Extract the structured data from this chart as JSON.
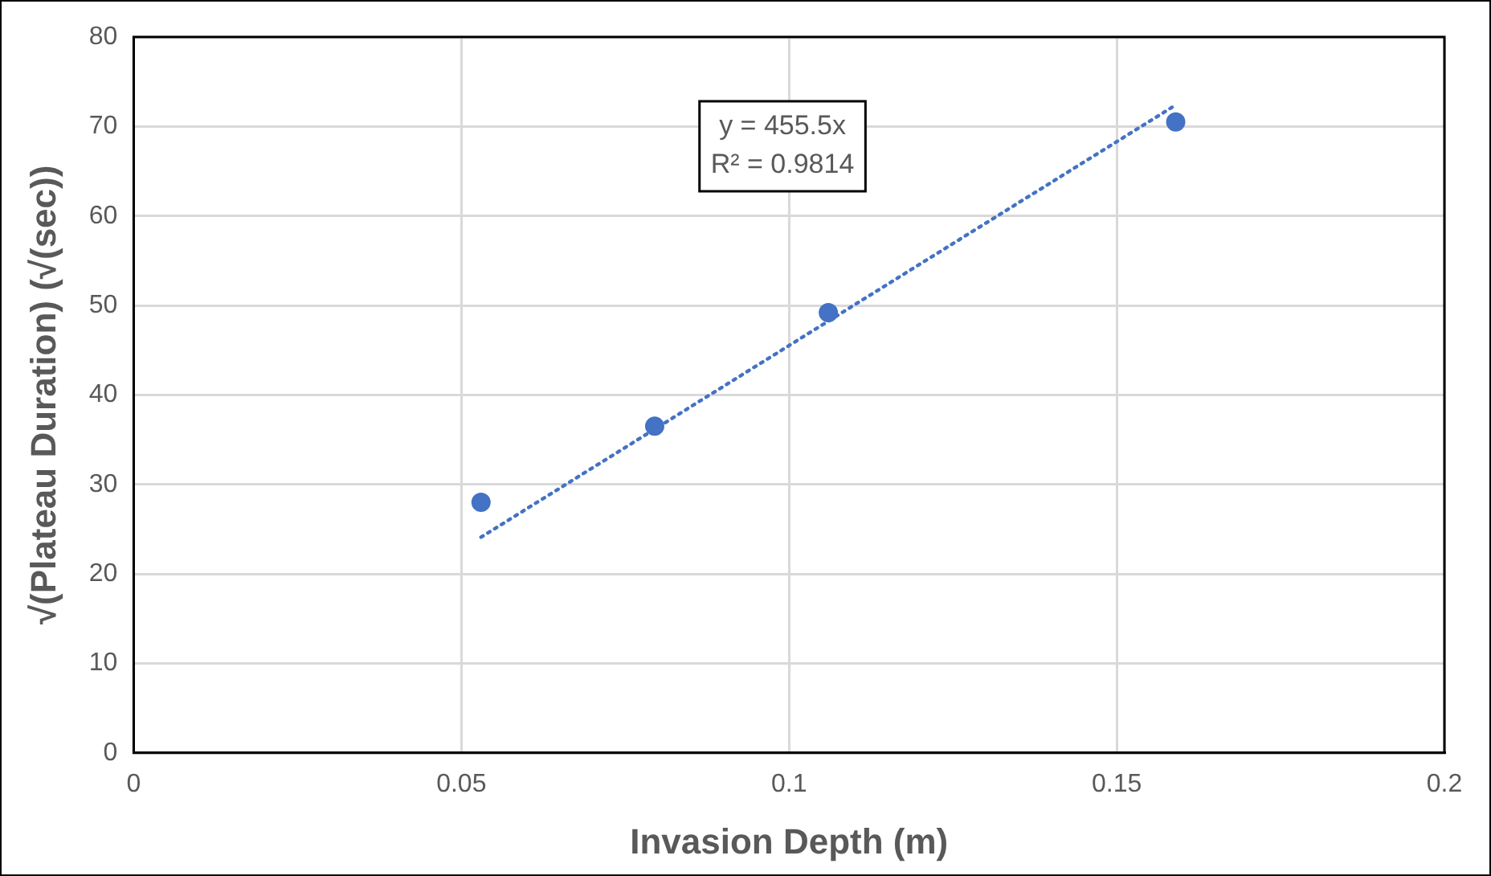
{
  "chart_data": {
    "type": "scatter",
    "xlabel": "Invasion Depth (m)",
    "ylabel": "√(Plateau Duration) (√(sec))",
    "xlim": [
      0,
      0.2
    ],
    "xticks": [
      0,
      0.05,
      0.1,
      0.15,
      0.2
    ],
    "ylim": [
      0,
      80
    ],
    "yticks": [
      0,
      10,
      20,
      30,
      40,
      50,
      60,
      70,
      80
    ],
    "grid": true,
    "legend": false,
    "series": [
      {
        "type": "scatter",
        "color": "#4472c4",
        "marker": "circle",
        "x": [
          0.053,
          0.0795,
          0.106,
          0.159
        ],
        "values": [
          28.0,
          36.5,
          49.2,
          70.5
        ]
      },
      {
        "type": "line",
        "color": "#4472c4",
        "marker": "none",
        "line_style": "dotted",
        "x": [
          0.053,
          0.159
        ],
        "values": [
          24.1,
          72.4
        ]
      }
    ],
    "annotations": [
      "y = 455.5x",
      "R² = 0.9814"
    ]
  }
}
